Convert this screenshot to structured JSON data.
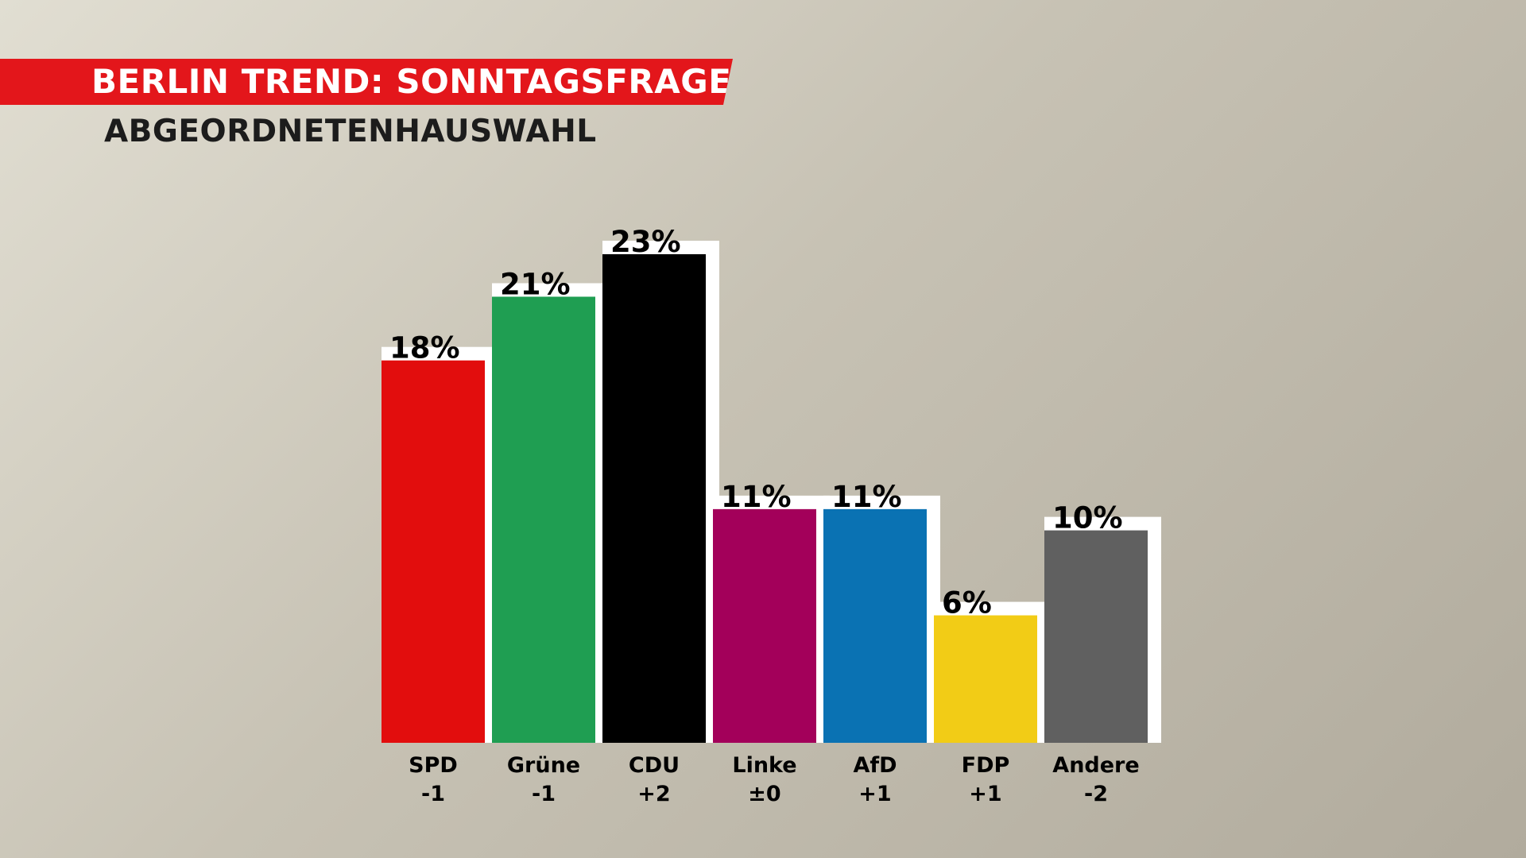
{
  "header": {
    "title": "BERLIN TREND: SONNTAGSFRAGE",
    "subtitle": "ABGEORDNETENHAUSWAHL"
  },
  "colors": {
    "banner": "#e3161b",
    "bar_outline": "#ffffff"
  },
  "chart_data": {
    "type": "bar",
    "title": "BERLIN TREND: SONNTAGSFRAGE",
    "subtitle": "ABGEORDNETENHAUSWAHL",
    "categories": [
      "SPD",
      "Grüne",
      "CDU",
      "Linke",
      "AfD",
      "FDP",
      "Andere"
    ],
    "values": [
      18,
      21,
      23,
      11,
      11,
      6,
      10
    ],
    "value_labels": [
      "18%",
      "21%",
      "23%",
      "11%",
      "11%",
      "6%",
      "10%"
    ],
    "changes": [
      "-1",
      "-1",
      "+2",
      "±0",
      "+1",
      "+1",
      "-2"
    ],
    "colors": [
      "#e20d0d",
      "#1f9e52",
      "#000000",
      "#a3005a",
      "#0a72b3",
      "#f2cc16",
      "#606060"
    ],
    "unit": "%",
    "ylim": [
      0,
      23
    ],
    "grid": false,
    "legend": "none"
  }
}
